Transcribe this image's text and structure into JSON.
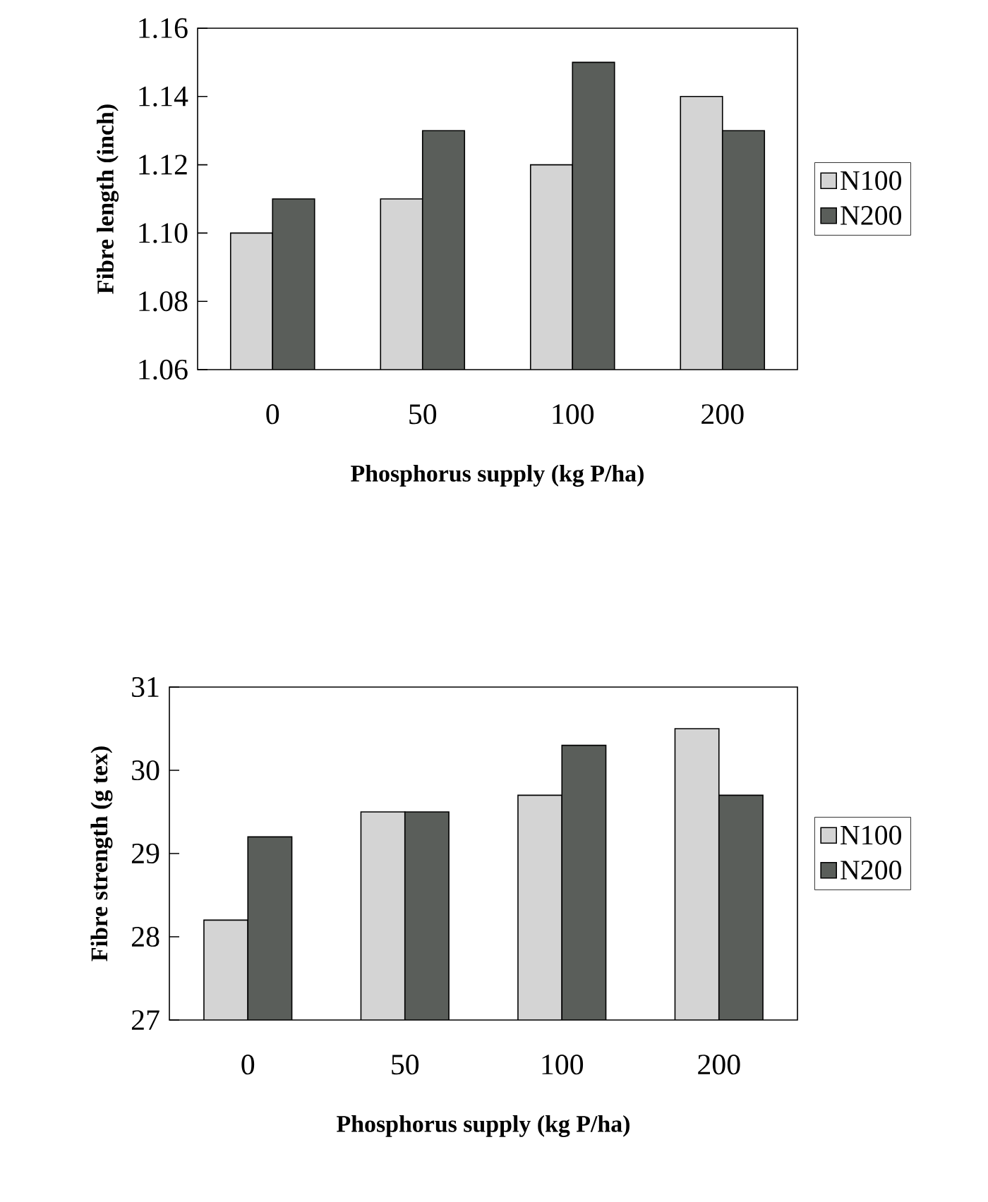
{
  "chart_data": [
    {
      "type": "bar",
      "categories": [
        "0",
        "50",
        "100",
        "200"
      ],
      "xlabel": "Phosphorus supply (kg P/ha)",
      "ylabel": "Fibre length (inch)",
      "series": [
        {
          "name": "N100",
          "color": "#d4d4d4",
          "values": [
            1.1,
            1.11,
            1.12,
            1.14
          ]
        },
        {
          "name": "N200",
          "color": "#5a5e5a",
          "values": [
            1.11,
            1.13,
            1.15,
            1.13
          ]
        }
      ],
      "ylim": [
        1.06,
        1.16
      ],
      "yticks": [
        {
          "value": 1.06,
          "label": "1.06"
        },
        {
          "value": 1.08,
          "label": "1.08"
        },
        {
          "value": 1.1,
          "label": "1.10"
        },
        {
          "value": 1.12,
          "label": "1.12"
        },
        {
          "value": 1.14,
          "label": "1.14"
        },
        {
          "value": 1.16,
          "label": "1.16"
        }
      ],
      "legend": "right"
    },
    {
      "type": "bar",
      "categories": [
        "0",
        "50",
        "100",
        "200"
      ],
      "xlabel": "Phosphorus supply (kg P/ha)",
      "ylabel": "Fibre strength (g tex)",
      "series": [
        {
          "name": "N100",
          "color": "#d4d4d4",
          "values": [
            28.2,
            29.5,
            29.7,
            30.5
          ]
        },
        {
          "name": "N200",
          "color": "#5a5e5a",
          "values": [
            29.2,
            29.5,
            30.3,
            29.7
          ]
        }
      ],
      "ylim": [
        27,
        31
      ],
      "yticks": [
        27,
        28,
        29,
        30,
        31
      ],
      "legend": "right"
    }
  ]
}
